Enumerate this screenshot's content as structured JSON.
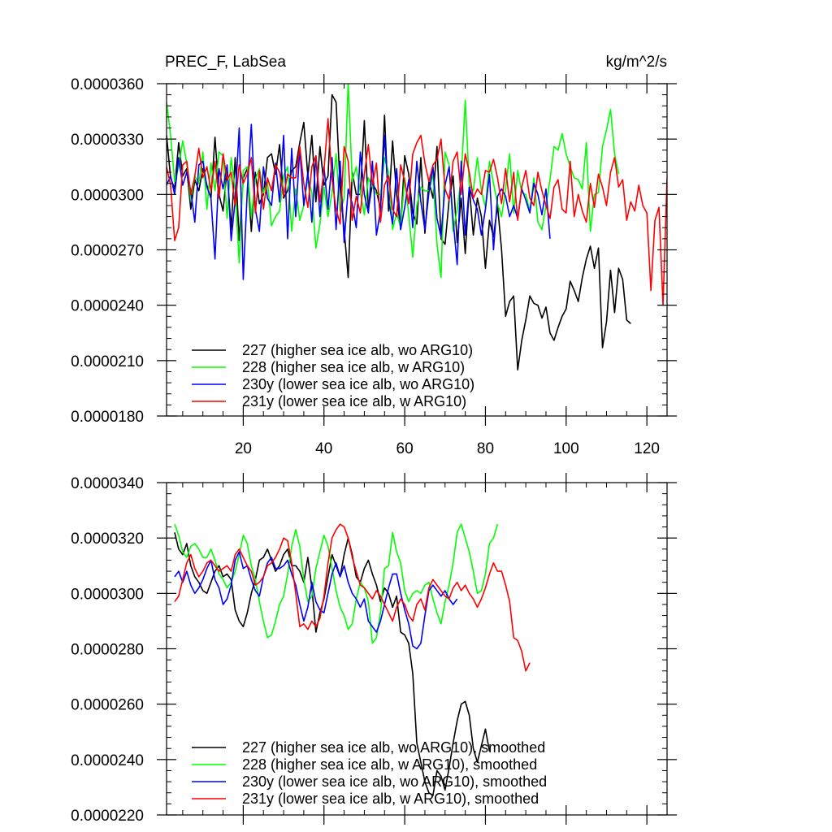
{
  "chart_data": [
    {
      "type": "line",
      "title": "PREC_F, LabSea",
      "units": "kg/m^2/s",
      "xlabel": "",
      "ylabel": "",
      "xlim": [
        1,
        125
      ],
      "ylim": [
        1.8e-05,
        3.6e-05
      ],
      "x_ticks": [
        20,
        40,
        60,
        80,
        100,
        120
      ],
      "x_tick_labels": [
        "20",
        "40",
        "60",
        "80",
        "100",
        "120"
      ],
      "y_ticks": [
        1.8e-05,
        2.1e-05,
        2.4e-05,
        2.7e-05,
        3e-05,
        3.3e-05,
        3.6e-05
      ],
      "y_tick_labels": [
        "0.0000180",
        "0.0000210",
        "0.0000240",
        "0.0000270",
        "0.0000300",
        "0.0000330",
        "0.0000360"
      ],
      "legend_position": "bottom-left",
      "series": [
        {
          "name": "227 (higher sea ice alb, wo ARG10)",
          "color": "#000000",
          "x_start": 1,
          "values": [
            33.2,
            30.9,
            30.3,
            32.8,
            31.0,
            31.4,
            29.2,
            30.8,
            30.2,
            31.4,
            30.5,
            29.8,
            33.1,
            30.0,
            29.1,
            31.4,
            28.1,
            32.0,
            27.5,
            30.9,
            31.4,
            28.0,
            31.2,
            29.5,
            30.0,
            32.0,
            32.2,
            31.1,
            32.7,
            29.8,
            30.2,
            31.3,
            31.5,
            32.8,
            33.9,
            31.0,
            33.2,
            29.6,
            32.6,
            30.5,
            31.0,
            35.4,
            35.0,
            30.4,
            28.1,
            25.5,
            31.2,
            30.0,
            30.0,
            34.0,
            29.2,
            30.6,
            30.2,
            29.2,
            34.3,
            29.1,
            32.9,
            30.0,
            28.1,
            32.1,
            31.1,
            29.0,
            28.4,
            32.0,
            27.9,
            30.7,
            29.8,
            32.6,
            27.6,
            27.3,
            29.7,
            31.0,
            27.4,
            29.8,
            26.8,
            30.4,
            27.8,
            29.8,
            28.8,
            26.0,
            28.6,
            27.7,
            29.4,
            27.0,
            23.4,
            24.2,
            24.5,
            20.5,
            22.1,
            23.2,
            24.5,
            24.1,
            24.0,
            23.3,
            23.9,
            22.5,
            22.1,
            22.8,
            23.4,
            23.8,
            25.3,
            24.8,
            24.2,
            25.5,
            26.5,
            27.2,
            26.0,
            27.1,
            21.7,
            23.1,
            25.9,
            23.6,
            26.0,
            25.4,
            23.2,
            23.0
          ],
          "values_scale": 1e-06
        },
        {
          "name": "228 (higher sea ice alb, w ARG10)",
          "color": "#00ff00",
          "x_start": 1,
          "values": [
            35.0,
            33.2,
            30.7,
            31.5,
            32.9,
            31.7,
            29.7,
            31.0,
            30.6,
            32.3,
            29.2,
            31.7,
            30.2,
            32.3,
            32.1,
            28.7,
            32.0,
            30.2,
            26.3,
            31.3,
            31.5,
            28.8,
            30.8,
            31.4,
            30.1,
            30.7,
            28.3,
            28.8,
            29.1,
            31.0,
            31.5,
            28.0,
            30.3,
            28.6,
            29.4,
            30.9,
            30.1,
            27.1,
            28.4,
            30.4,
            28.8,
            30.1,
            32.2,
            29.1,
            29.8,
            36.1,
            30.7,
            31.5,
            30.1,
            28.9,
            30.9,
            30.4,
            30.0,
            30.0,
            32.0,
            31.2,
            28.1,
            29.0,
            28.2,
            30.9,
            28.9,
            26.6,
            29.4,
            30.4,
            30.2,
            30.2,
            31.1,
            27.3,
            25.5,
            32.3,
            31.6,
            28.0,
            29.2,
            30.9,
            35.1,
            30.5,
            30.2,
            32.0,
            30.2,
            29.3,
            31.8,
            30.6,
            29.5,
            28.8,
            30.3,
            32.2,
            29.0,
            31.3,
            30.1,
            30.0,
            29.1,
            30.9,
            28.5,
            28.1,
            29.4,
            30.8,
            32.6,
            32.4,
            33.3,
            32.2,
            31.5,
            30.9,
            30.8,
            30.3,
            32.8,
            28.0,
            30.0,
            30.1,
            32.6,
            33.5,
            34.6,
            32.2,
            31.1
          ],
          "values_scale": 1e-06
        },
        {
          "name": "230y (lower sea ice alb, wo ARG10)",
          "color": "#0000ff",
          "x_start": 1,
          "values": [
            30.5,
            31.0,
            30.0,
            32.0,
            30.5,
            31.2,
            30.2,
            28.5,
            31.6,
            31.8,
            30.4,
            29.8,
            26.5,
            31.4,
            30.3,
            31.6,
            27.5,
            29.7,
            33.6,
            25.4,
            30.2,
            33.8,
            29.2,
            28.0,
            31.5,
            29.8,
            29.4,
            31.7,
            29.6,
            33.2,
            27.6,
            32.5,
            28.8,
            32.5,
            29.4,
            31.2,
            28.5,
            32.1,
            28.8,
            31.5,
            29.2,
            32.0,
            28.1,
            31.8,
            27.4,
            30.3,
            29.5,
            28.2,
            32.3,
            30.0,
            29.0,
            31.8,
            27.8,
            29.1,
            33.2,
            29.7,
            28.4,
            31.4,
            28.1,
            29.3,
            30.8,
            28.2,
            31.8,
            29.6,
            28.1,
            30.1,
            31.5,
            28.7,
            27.7,
            30.5,
            31.5,
            28.6,
            26.2,
            31.8,
            27.8,
            30.4,
            29.7,
            29.2,
            27.8,
            29.2,
            31.1,
            27.0,
            29.9,
            30.3,
            29.9,
            28.8,
            29.4,
            28.7,
            30.3,
            29.7,
            29.0,
            30.6,
            30.0,
            28.9,
            30.3,
            27.6
          ],
          "values_scale": 1e-06
        },
        {
          "name": "231y (lower sea ice alb, w ARG10)",
          "color": "#ff0000",
          "x_start": 1,
          "values": [
            31.5,
            30.5,
            27.5,
            28.2,
            31.6,
            31.8,
            30.0,
            31.0,
            32.5,
            30.9,
            31.5,
            30.2,
            31.8,
            29.8,
            32.2,
            30.8,
            31.2,
            29.4,
            31.6,
            30.6,
            31.1,
            32.0,
            29.0,
            31.3,
            29.2,
            30.9,
            30.2,
            31.6,
            31.2,
            29.9,
            31.1,
            30.9,
            30.9,
            32.6,
            30.6,
            29.3,
            31.5,
            32.1,
            29.6,
            31.3,
            34.1,
            30.8,
            29.2,
            28.4,
            32.6,
            31.8,
            28.6,
            29.9,
            29.0,
            31.1,
            32.7,
            30.5,
            31.7,
            28.5,
            30.5,
            31.0,
            29.2,
            28.8,
            31.6,
            30.7,
            29.5,
            32.2,
            32.8,
            33.2,
            31.7,
            30.7,
            31.6,
            31.9,
            33.0,
            30.3,
            29.7,
            31.8,
            32.3,
            30.0,
            32.2,
            31.2,
            29.8,
            30.3,
            30.0,
            31.3,
            31.2,
            31.9,
            30.9,
            29.5,
            31.4,
            29.6,
            31.2,
            28.6,
            30.4,
            31.3,
            29.8,
            29.4,
            31.2,
            30.2,
            29.4,
            28.7,
            30.4,
            30.8,
            29.2,
            29.0,
            31.8,
            28.8,
            30.0,
            29.1,
            28.5,
            30.6,
            29.3,
            31.1,
            30.4,
            29.4,
            31.2,
            32.0,
            30.4,
            30.8,
            28.6,
            29.6,
            29.1,
            30.5,
            29.4,
            29.0,
            24.8,
            28.6,
            29.3,
            24.0,
            30.9
          ],
          "values_scale": 1e-06
        }
      ]
    },
    {
      "type": "line",
      "title": "",
      "xlabel": "",
      "ylabel": "",
      "xlim": [
        1,
        125
      ],
      "ylim": [
        2.2e-05,
        3.4e-05
      ],
      "x_ticks": [
        20,
        40,
        60,
        80,
        100,
        120
      ],
      "x_tick_labels": [],
      "y_ticks": [
        2.2e-05,
        2.4e-05,
        2.6e-05,
        2.8e-05,
        3e-05,
        3.2e-05,
        3.4e-05
      ],
      "y_tick_labels": [
        "0.0000220",
        "0.0000240",
        "0.0000260",
        "0.0000280",
        "0.0000300",
        "0.0000320",
        "0.0000340"
      ],
      "legend_position": "bottom-left",
      "series": [
        {
          "name": "227 (higher sea ice alb, wo ARG10), smoothed",
          "color": "#000000",
          "x_start": 3,
          "values": [
            32.2,
            31.6,
            31.4,
            31.8,
            31.0,
            30.6,
            30.4,
            30.1,
            30.0,
            30.4,
            30.8,
            31.0,
            30.6,
            30.7,
            30.5,
            29.4,
            29.0,
            28.8,
            29.3,
            30.0,
            30.5,
            31.2,
            31.3,
            31.6,
            31.2,
            30.8,
            31.0,
            31.4,
            31.6,
            31.0,
            31.0,
            30.8,
            30.4,
            31.3,
            30.2,
            28.6,
            29.3,
            29.8,
            30.6,
            31.4,
            31.0,
            30.6,
            31.4,
            32.0,
            31.4,
            30.6,
            30.4,
            30.9,
            31.2,
            30.7,
            30.3,
            29.7,
            30.2,
            30.0,
            29.5,
            29.9,
            28.6,
            28.5,
            28.2,
            27.1,
            24.6,
            23.9,
            23.2,
            22.8,
            22.7,
            23.6,
            23.4,
            22.9,
            23.7,
            24.6,
            25.4,
            26.0,
            26.1,
            25.6,
            24.4,
            23.9,
            24.5,
            25.1,
            24.3
          ],
          "values_scale": 1e-06
        },
        {
          "name": "228 (higher sea ice alb, w ARG10), smoothed",
          "color": "#00ff00",
          "x_start": 3,
          "values": [
            32.5,
            32.1,
            31.5,
            31.3,
            31.7,
            31.8,
            31.6,
            31.3,
            31.3,
            31.6,
            31.2,
            30.7,
            30.5,
            30.2,
            30.4,
            30.8,
            31.4,
            32.1,
            31.8,
            31.0,
            30.5,
            29.7,
            29.0,
            28.4,
            28.5,
            29.0,
            29.6,
            29.9,
            30.7,
            31.7,
            32.3,
            31.7,
            30.5,
            29.7,
            29.9,
            30.9,
            31.5,
            32.1,
            31.7,
            30.9,
            30.1,
            29.5,
            29.2,
            28.7,
            28.9,
            29.8,
            30.4,
            30.2,
            29.7,
            28.2,
            28.4,
            29.3,
            30.9,
            31.0,
            32.2,
            31.5,
            31.1,
            30.1,
            29.7,
            30.0,
            30.1,
            30.0,
            30.3,
            30.4,
            29.8,
            29.3,
            28.9,
            29.7,
            30.3,
            31.1,
            32.2,
            32.5,
            32.0,
            31.5,
            30.8,
            30.0,
            30.1,
            30.7,
            31.8,
            32.0,
            32.5
          ],
          "values_scale": 1e-06
        },
        {
          "name": "230y (lower sea ice alb, wo ARG10), smoothed",
          "color": "#0000ff",
          "x_start": 3,
          "values": [
            30.6,
            30.8,
            30.4,
            30.8,
            30.3,
            30.0,
            30.2,
            30.5,
            30.9,
            31.2,
            30.5,
            30.2,
            29.6,
            29.8,
            30.3,
            31.2,
            31.5,
            30.9,
            31.0,
            30.5,
            30.1,
            29.9,
            30.6,
            31.1,
            31.3,
            30.9,
            30.9,
            31.0,
            31.2,
            30.7,
            30.3,
            29.6,
            29.0,
            29.5,
            30.4,
            29.7,
            29.4,
            29.3,
            30.0,
            30.7,
            31.1,
            30.6,
            31.0,
            30.4,
            30.0,
            29.8,
            29.5,
            29.8,
            29.0,
            28.8,
            28.6,
            29.0,
            29.6,
            30.2,
            30.7,
            30.7,
            30.0,
            29.4,
            28.9,
            28.1,
            28.0,
            28.2,
            29.2,
            30.1,
            30.3,
            30.1,
            29.9,
            30.1,
            29.8,
            29.6,
            29.8
          ],
          "values_scale": 1e-06
        },
        {
          "name": "231y (lower sea ice alb, w ARG10), smoothed",
          "color": "#ff0000",
          "x_start": 3,
          "values": [
            29.7,
            29.9,
            30.5,
            31.1,
            31.4,
            30.9,
            30.6,
            30.8,
            31.1,
            31.2,
            31.0,
            30.8,
            30.9,
            31.0,
            30.8,
            31.4,
            31.6,
            31.3,
            31.0,
            30.8,
            30.3,
            30.4,
            30.6,
            31.0,
            31.1,
            31.3,
            31.6,
            32.0,
            31.9,
            31.1,
            30.0,
            28.8,
            28.9,
            28.7,
            29.0,
            28.8,
            29.1,
            29.9,
            31.1,
            32.0,
            32.3,
            32.5,
            32.4,
            32.0,
            31.3,
            30.8,
            30.3,
            30.2,
            30.0,
            29.8,
            30.1,
            29.9,
            29.6,
            29.3,
            29.0,
            29.5,
            29.8,
            29.6,
            29.2,
            29.0,
            29.6,
            29.8,
            29.4,
            30.2,
            30.5,
            30.3,
            30.1,
            29.9,
            29.8,
            30.2,
            30.4,
            30.1,
            30.3,
            30.0,
            29.8,
            29.5,
            29.8,
            30.2,
            30.7,
            31.1,
            30.8,
            30.8,
            30.3,
            29.7,
            28.4,
            28.3,
            27.9,
            27.2,
            27.5
          ],
          "values_scale": 1e-06
        }
      ]
    }
  ]
}
